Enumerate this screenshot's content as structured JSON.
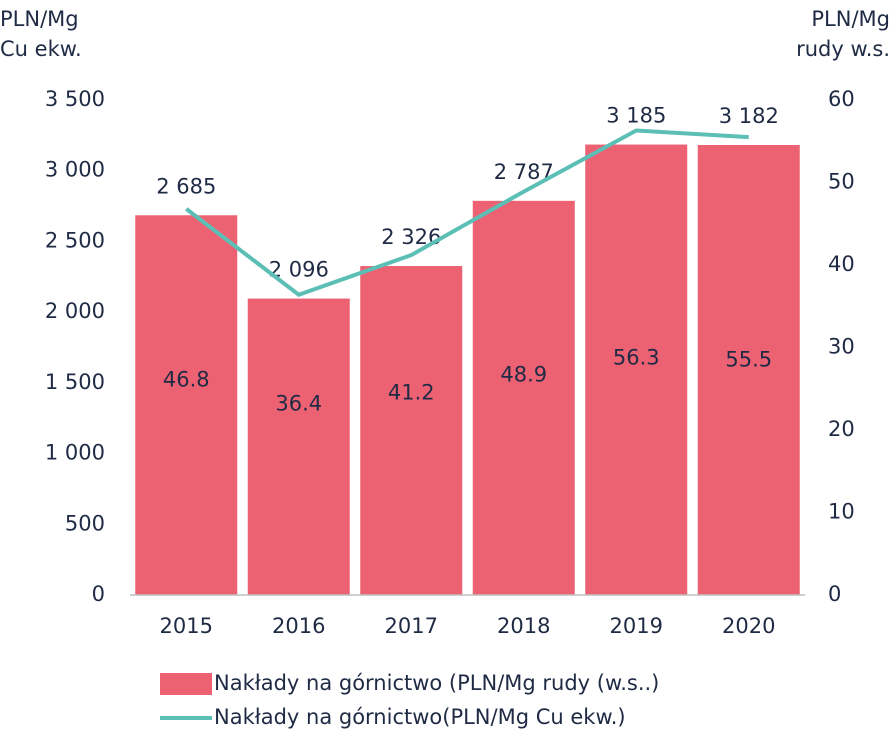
{
  "chart_data": {
    "type": "bar_line",
    "ylabel_lines": [
      "PLN/Mg",
      "Cu ekw."
    ],
    "y2label_lines": [
      "PLN/Mg",
      "rudy w.s."
    ],
    "categories": [
      "2015",
      "2016",
      "2017",
      "2018",
      "2019",
      "2020"
    ],
    "series": [
      {
        "name": "Nakłady na górnictwo (PLN/Mg rudy (w.s..)",
        "color": "#ec6272",
        "type": "bar",
        "values": [
          2685,
          2096,
          2326,
          2787,
          3185,
          3182
        ],
        "value_labels": [
          "2 685",
          "2 096",
          "2 326",
          "2 787",
          "3 185",
          "3 182"
        ]
      },
      {
        "name": "Nakłady na górnictwo(PLN/Mg Cu ekw.)",
        "color": "#5bbfb5",
        "type": "line",
        "axis": "y2",
        "values": [
          46.8,
          36.4,
          41.2,
          48.9,
          56.3,
          55.5
        ]
      }
    ],
    "ylim": [
      0,
      3500
    ],
    "yticks": [
      0,
      {
        "value": 500,
        "label": "500"
      },
      {
        "value": 1000,
        "label": "1 000"
      },
      {
        "value": 1500,
        "label": "1 500"
      },
      {
        "value": 2000,
        "label": "2 000"
      },
      {
        "value": 2500,
        "label": "2 500"
      },
      {
        "value": 3000,
        "label": "3 000"
      },
      {
        "value": 3500,
        "label": "3 500"
      }
    ],
    "y2lim": [
      0,
      60
    ],
    "y2ticks": [
      0,
      10,
      20,
      30,
      40,
      50,
      60
    ],
    "grid": false
  }
}
